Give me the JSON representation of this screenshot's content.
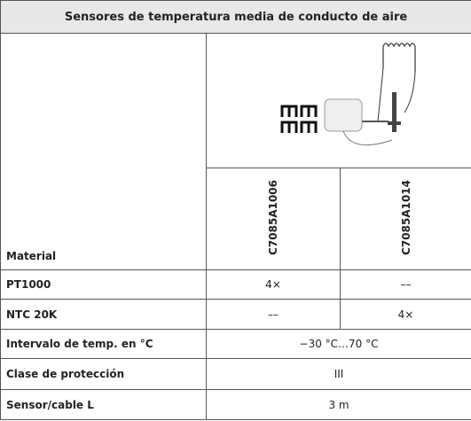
{
  "title": "Sensores de temperatura media de conducto de aire",
  "table": {
    "header": {
      "label": "Material",
      "columns": [
        "C7085A1006",
        "C7085A1014"
      ]
    },
    "rows": [
      [
        "PT1000",
        "4×",
        "––"
      ],
      [
        "NTC 20K",
        "––",
        "4×"
      ],
      [
        "Intervalo de temp. en °C",
        "−30 °C…70 °C"
      ],
      [
        "Clase de protección",
        "III"
      ],
      [
        "Sensor/cable L",
        "3 m"
      ]
    ]
  }
}
